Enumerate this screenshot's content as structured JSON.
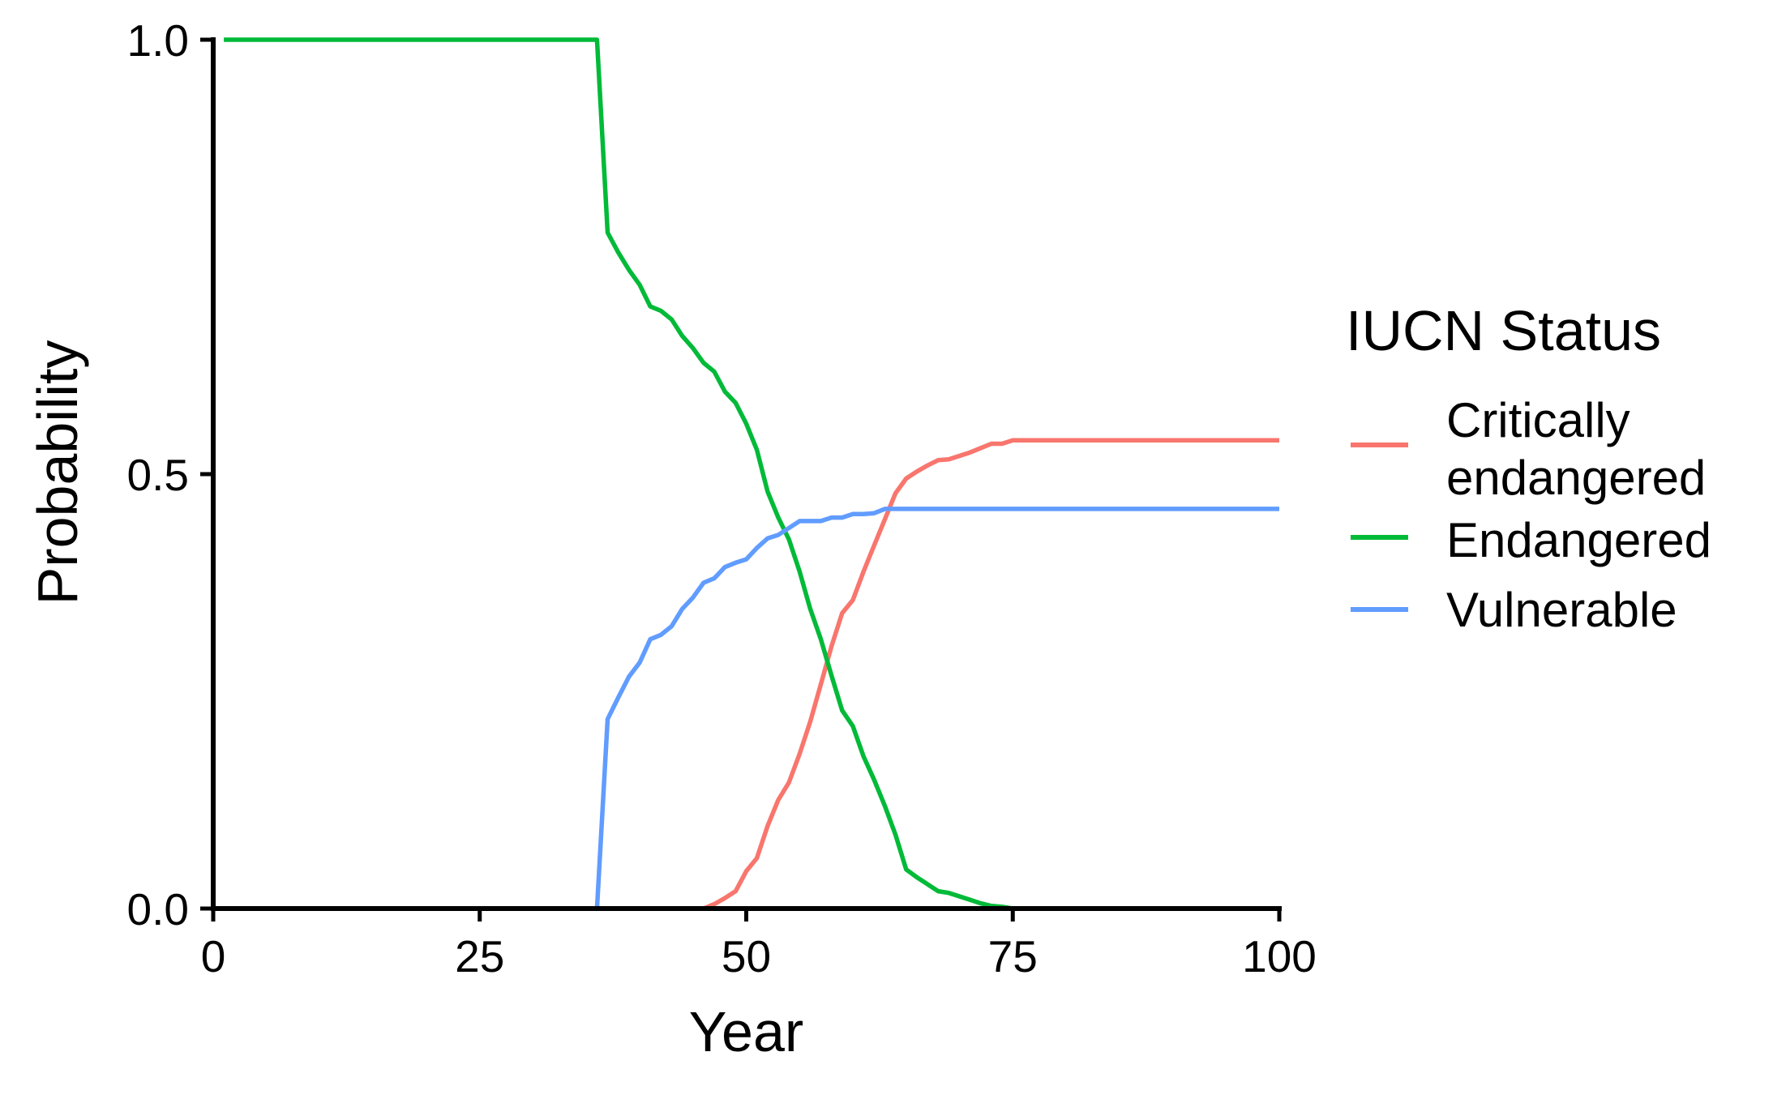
{
  "chart_data": {
    "type": "line",
    "title": "",
    "xlabel": "Year",
    "ylabel": "Probability",
    "xlim": [
      0,
      100
    ],
    "ylim": [
      0,
      1
    ],
    "x_ticks": [
      0,
      25,
      50,
      75,
      100
    ],
    "x_tick_labels": [
      "0",
      "25",
      "50",
      "75",
      "100"
    ],
    "y_ticks": [
      0,
      0.5,
      1
    ],
    "y_tick_labels": [
      "0.0",
      "0.5",
      "1.0"
    ],
    "grid": false,
    "legend": {
      "title": "IUCN Status",
      "placement": "right",
      "entries": [
        {
          "label_lines": [
            "Critically",
            "endangered"
          ],
          "color": "#F8766D"
        },
        {
          "label_lines": [
            "Endangered"
          ],
          "color": "#00BA38"
        },
        {
          "label_lines": [
            "Vulnerable"
          ],
          "color": "#619CFF"
        }
      ]
    },
    "series": [
      {
        "name": "Critically endangered",
        "color": "#F8766D",
        "x": [
          46,
          47,
          48,
          49,
          50,
          51,
          52,
          53,
          54,
          55,
          56,
          57,
          58,
          59,
          60,
          61,
          62,
          63,
          64,
          65,
          66,
          67,
          68,
          69,
          70,
          71,
          72,
          73,
          74,
          75,
          76,
          100
        ],
        "y": [
          0.0,
          0.005,
          0.012,
          0.02,
          0.043,
          0.058,
          0.095,
          0.125,
          0.145,
          0.178,
          0.215,
          0.258,
          0.302,
          0.34,
          0.355,
          0.388,
          0.418,
          0.448,
          0.478,
          0.495,
          0.503,
          0.51,
          0.516,
          0.517,
          0.521,
          0.525,
          0.53,
          0.535,
          0.535,
          0.539,
          0.539,
          0.539
        ]
      },
      {
        "name": "Endangered",
        "color": "#00BA38",
        "x": [
          1,
          36,
          37,
          38,
          39,
          40,
          41,
          42,
          43,
          44,
          45,
          46,
          47,
          48,
          49,
          50,
          51,
          52,
          53,
          54,
          55,
          56,
          57,
          58,
          59,
          60,
          61,
          62,
          63,
          64,
          65,
          66,
          67,
          68,
          69,
          70,
          71,
          72,
          73,
          74,
          75
        ],
        "y": [
          1.0,
          1.0,
          0.778,
          0.755,
          0.735,
          0.718,
          0.693,
          0.688,
          0.678,
          0.659,
          0.645,
          0.628,
          0.618,
          0.595,
          0.582,
          0.558,
          0.528,
          0.48,
          0.45,
          0.425,
          0.388,
          0.345,
          0.31,
          0.268,
          0.228,
          0.21,
          0.175,
          0.148,
          0.118,
          0.085,
          0.045,
          0.036,
          0.028,
          0.02,
          0.018,
          0.014,
          0.01,
          0.006,
          0.003,
          0.002,
          0.0
        ]
      },
      {
        "name": "Vulnerable",
        "color": "#619CFF",
        "x": [
          36,
          37,
          38,
          39,
          40,
          41,
          42,
          43,
          44,
          45,
          46,
          47,
          48,
          49,
          50,
          51,
          52,
          53,
          54,
          55,
          56,
          57,
          58,
          59,
          60,
          61,
          62,
          63,
          64,
          65,
          66,
          100
        ],
        "y": [
          0.0,
          0.218,
          0.243,
          0.267,
          0.283,
          0.31,
          0.315,
          0.325,
          0.345,
          0.358,
          0.375,
          0.38,
          0.393,
          0.398,
          0.402,
          0.415,
          0.426,
          0.43,
          0.438,
          0.446,
          0.446,
          0.446,
          0.45,
          0.45,
          0.454,
          0.454,
          0.455,
          0.46,
          0.46,
          0.46,
          0.46,
          0.46
        ]
      }
    ]
  }
}
